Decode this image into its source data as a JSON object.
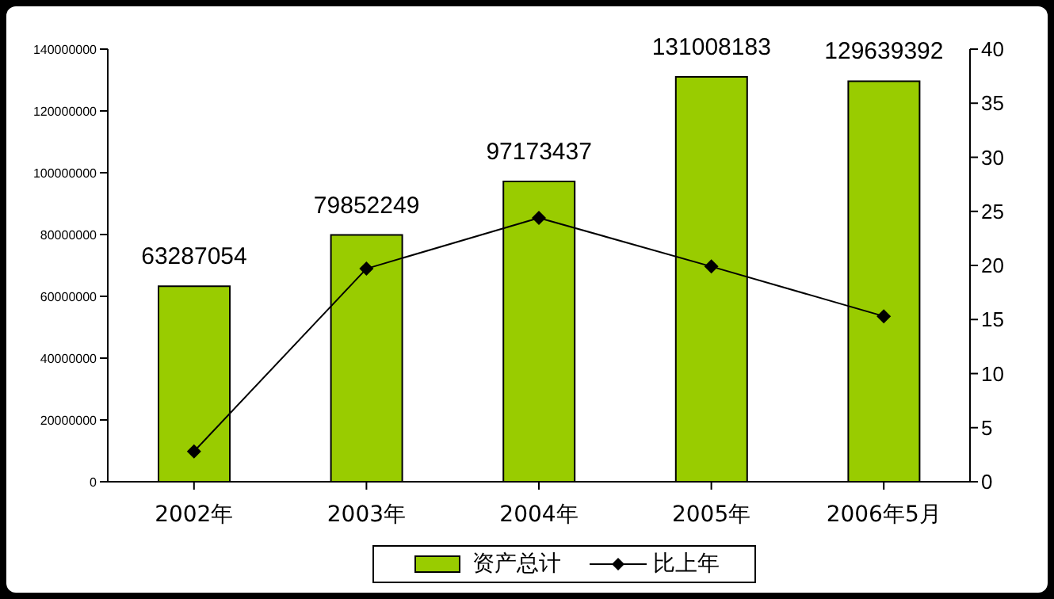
{
  "chart_data": {
    "type": "bar",
    "categories": [
      "2002年",
      "2003年",
      "2004年",
      "2005年",
      "2006年5月"
    ],
    "series": [
      {
        "name": "资产总计",
        "color": "#99cc00",
        "values": [
          63287054,
          79852249,
          97173437,
          131008183,
          129639392
        ],
        "value_labels": [
          "63287054",
          "79852249",
          "97173437",
          "131008183",
          "129639392"
        ]
      },
      {
        "name": "比上年",
        "type": "line",
        "axis": "y2",
        "color": "#000000",
        "values": [
          2.8,
          19.7,
          24.4,
          19.9,
          15.3
        ]
      }
    ],
    "ylim": [
      0,
      140000000
    ],
    "yticks": [
      0,
      20000000,
      40000000,
      60000000,
      80000000,
      100000000,
      120000000,
      140000000
    ],
    "y2lim": [
      0,
      40
    ],
    "y2ticks": [
      0,
      5,
      10,
      15,
      20,
      25,
      30,
      35,
      40
    ],
    "legend": "bottom",
    "marker": "diamond",
    "line_style": "solid"
  }
}
